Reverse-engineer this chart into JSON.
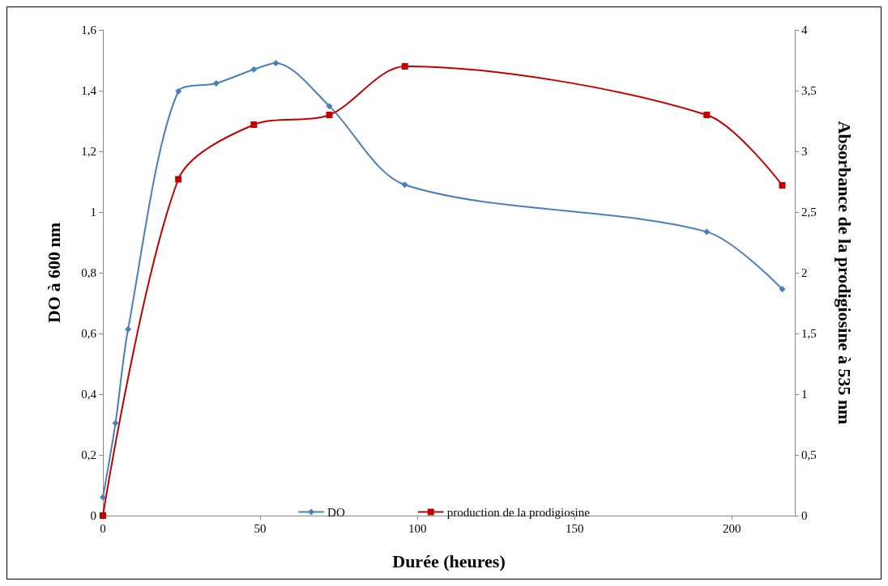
{
  "chart_data": {
    "type": "line",
    "xlabel": "Durée (heures)",
    "ylabel": "DO à 600 nm",
    "y2label": "Absorbance de la prodigiosine à 535 nm",
    "series": [
      {
        "name": "DO",
        "color": "#4a7ebb",
        "marker": "diamond",
        "x": [
          0,
          4,
          8,
          24,
          36,
          48,
          55,
          72,
          96,
          192,
          216
        ],
        "values": [
          0.06,
          0.305,
          0.614,
          1.398,
          1.424,
          1.47,
          1.491,
          1.349,
          1.09,
          0.935,
          0.746
        ]
      },
      {
        "name": "production de la prodigiosine",
        "color": "#c00000",
        "marker": "square",
        "axis": "y2",
        "x": [
          0,
          24,
          48,
          72,
          96,
          192,
          216
        ],
        "values": [
          0,
          2.77,
          3.22,
          3.3,
          3.7,
          3.3,
          2.72
        ]
      }
    ],
    "xlim": [
      0,
      220
    ],
    "xticks": [
      0,
      50,
      100,
      150,
      200
    ],
    "ylim": [
      0,
      1.6
    ],
    "yticks": [
      0,
      {
        "value": 0.2,
        "label": "0,2"
      },
      {
        "value": 0.4,
        "label": "0,4"
      },
      {
        "value": 0.6,
        "label": "0,6"
      },
      {
        "value": 0.8,
        "label": "0,8"
      },
      1,
      {
        "value": 1.2,
        "label": "1,2"
      },
      {
        "value": 1.4,
        "label": "1,4"
      },
      {
        "value": 1.6,
        "label": "1,6"
      }
    ],
    "y2lim": [
      0,
      4
    ],
    "y2ticks": [
      0,
      {
        "value": 0.5,
        "label": "0,5"
      },
      1,
      {
        "value": 1.5,
        "label": "1,5"
      },
      2,
      {
        "value": 2.5,
        "label": "2,5"
      },
      3,
      {
        "value": 3.5,
        "label": "3,5"
      },
      4
    ],
    "grid": false,
    "legend": "bottom",
    "line_style": "solid"
  }
}
